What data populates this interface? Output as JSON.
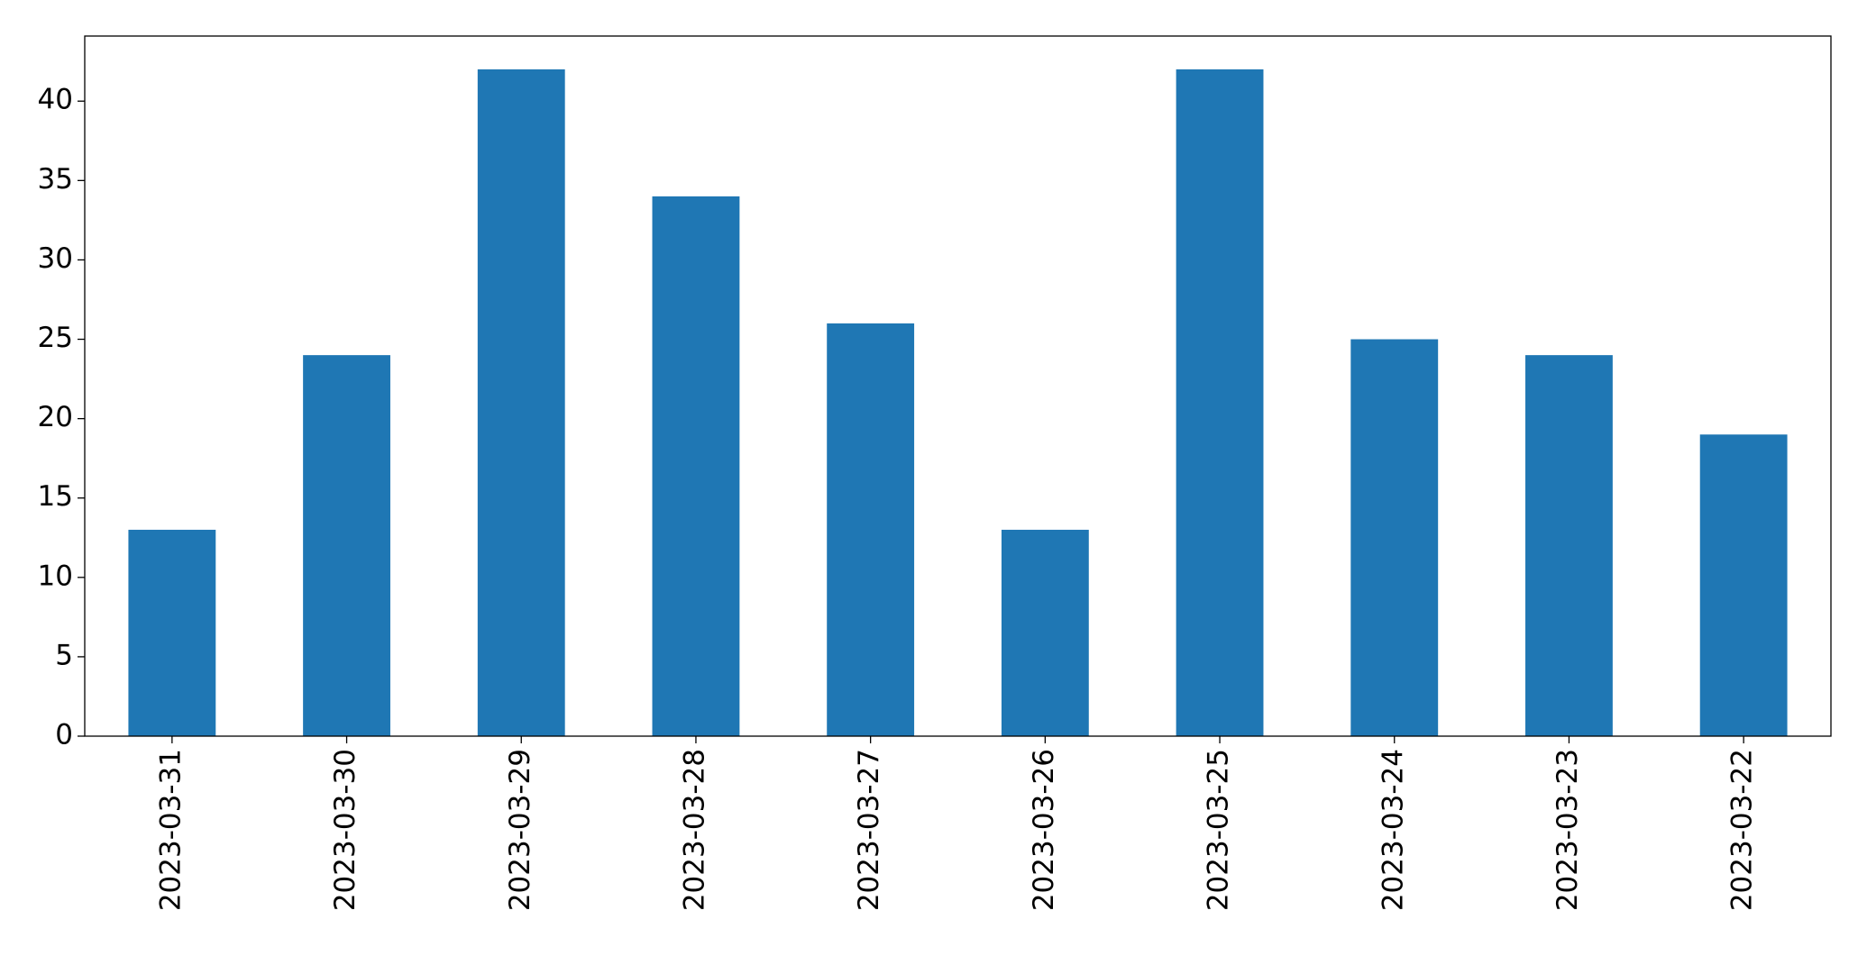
{
  "chart_data": {
    "type": "bar",
    "categories": [
      "2023-03-31",
      "2023-03-30",
      "2023-03-29",
      "2023-03-28",
      "2023-03-27",
      "2023-03-26",
      "2023-03-25",
      "2023-03-24",
      "2023-03-23",
      "2023-03-22"
    ],
    "values": [
      13,
      24,
      42,
      34,
      26,
      13,
      42,
      25,
      24,
      19
    ],
    "color": "#1f77b4",
    "ylim": [
      0,
      44.1
    ],
    "yticks": [
      0,
      5,
      10,
      15,
      20,
      25,
      30,
      35,
      40
    ],
    "grid": false
  }
}
